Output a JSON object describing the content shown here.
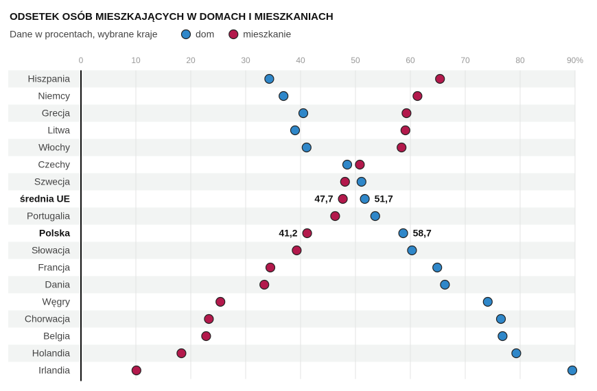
{
  "chart_data": {
    "type": "dot",
    "title": "ODSETEK OSÓB MIESZKAJĄCYCH W DOMACH I MIESZKANIACH",
    "subtitle": "Dane w procentach, wybrane kraje",
    "categories": [
      "Hiszpania",
      "Niemcy",
      "Grecja",
      "Litwa",
      "Włochy",
      "Czechy",
      "Szwecja",
      "średnia UE",
      "Portugalia",
      "Polska",
      "Słowacja",
      "Francja",
      "Dania",
      "Węgry",
      "Chorwacja",
      "Belgia",
      "Holandia",
      "Irlandia"
    ],
    "series": [
      {
        "name": "dom",
        "color": "#2f87c9",
        "values": [
          34.3,
          36.9,
          40.5,
          39.0,
          41.1,
          48.5,
          51.1,
          51.7,
          53.6,
          58.7,
          60.3,
          64.9,
          66.3,
          74.1,
          76.5,
          76.8,
          79.3,
          89.5
        ],
        "value_labels": [
          null,
          null,
          null,
          null,
          null,
          null,
          null,
          "51,7",
          null,
          "58,7",
          null,
          null,
          null,
          null,
          null,
          null,
          null,
          null
        ]
      },
      {
        "name": "mieszkanie",
        "color": "#b3194c",
        "values": [
          65.4,
          61.3,
          59.3,
          59.1,
          58.4,
          50.8,
          48.1,
          47.7,
          46.3,
          41.2,
          39.3,
          34.5,
          33.4,
          25.4,
          23.3,
          22.8,
          18.3,
          10.1
        ],
        "value_labels": [
          null,
          null,
          null,
          null,
          null,
          null,
          null,
          "47,7",
          null,
          "41,2",
          null,
          null,
          null,
          null,
          null,
          null,
          null,
          null
        ]
      }
    ],
    "xlim": [
      0,
      90
    ],
    "xticks": [
      0,
      10,
      20,
      30,
      40,
      50,
      60,
      70,
      80,
      {
        "value": 90,
        "label": "90%"
      }
    ],
    "grid": true
  }
}
